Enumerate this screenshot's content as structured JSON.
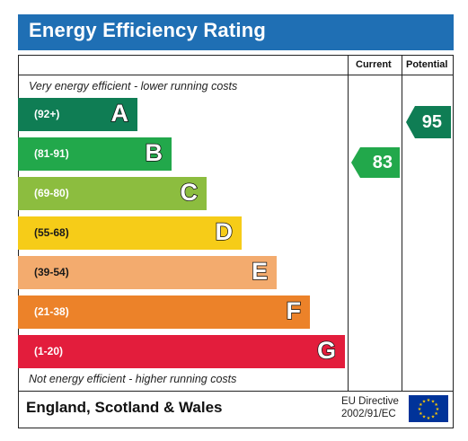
{
  "title": "Energy Efficiency Rating",
  "columns": {
    "current": "Current",
    "potential": "Potential"
  },
  "top_note": "Very energy efficient - lower running costs",
  "bottom_note": "Not energy efficient - higher running costs",
  "bands": [
    {
      "range": "(92+)",
      "letter": "A",
      "color": "#0f7d54"
    },
    {
      "range": "(81-91)",
      "letter": "B",
      "color": "#22a84b"
    },
    {
      "range": "(69-80)",
      "letter": "C",
      "color": "#8cbd3f"
    },
    {
      "range": "(55-68)",
      "letter": "D",
      "color": "#f6cc18"
    },
    {
      "range": "(39-54)",
      "letter": "E",
      "color": "#f3ab6e"
    },
    {
      "range": "(21-38)",
      "letter": "F",
      "color": "#ec8229"
    },
    {
      "range": "(1-20)",
      "letter": "G",
      "color": "#e31d3c"
    }
  ],
  "current": {
    "value": "83",
    "band": "B",
    "color": "#22a84b"
  },
  "potential": {
    "value": "95",
    "band": "A",
    "color": "#0f7d54"
  },
  "footer": {
    "country": "England, Scotland & Wales",
    "directive_line1": "EU Directive",
    "directive_line2": "2002/91/EC",
    "flag_icon": "eu-flag-icon"
  }
}
